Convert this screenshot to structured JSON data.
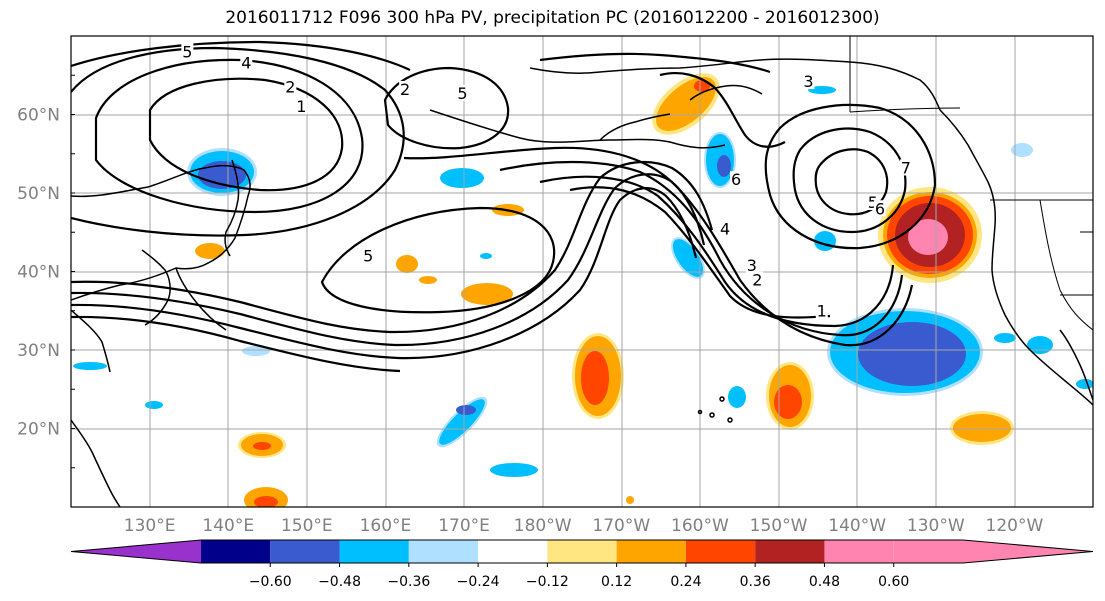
{
  "title": "2016011712 F096 300 hPa PV, precipitation PC (2016012200 - 2016012300)",
  "map": {
    "lat_labels": [
      "60°N",
      "50°N",
      "40°N",
      "30°N",
      "20°N"
    ],
    "lat_values": [
      60,
      50,
      40,
      30,
      20
    ],
    "lon_labels": [
      "130°E",
      "140°E",
      "150°E",
      "160°E",
      "170°E",
      "180°W",
      "170°W",
      "160°W",
      "150°W",
      "140°W",
      "130°W",
      "120°W"
    ],
    "lon_values": [
      130,
      140,
      150,
      160,
      170,
      180,
      190,
      200,
      210,
      220,
      230,
      240
    ],
    "lon_range": [
      120,
      250
    ],
    "lat_range": [
      10,
      70
    ],
    "grid": true,
    "pv_contour_levels": [
      1,
      2,
      3,
      4,
      5,
      6,
      7
    ],
    "pv_contour_labels": [
      {
        "text": "5",
        "lon": 134.8,
        "lat": 67.8
      },
      {
        "text": "4",
        "lon": 142.3,
        "lat": 66.4
      },
      {
        "text": "2",
        "lon": 147.9,
        "lat": 63.3
      },
      {
        "text": "1",
        "lon": 149.3,
        "lat": 60.8
      },
      {
        "text": "2",
        "lon": 162.5,
        "lat": 63.0
      },
      {
        "text": "5",
        "lon": 169.8,
        "lat": 62.5
      },
      {
        "text": "3",
        "lon": 213.8,
        "lat": 64.0
      },
      {
        "text": "5",
        "lon": 157.8,
        "lat": 41.8
      },
      {
        "text": "6",
        "lon": 204.6,
        "lat": 51.5
      },
      {
        "text": "4",
        "lon": 203.2,
        "lat": 45.2
      },
      {
        "text": "3",
        "lon": 206.6,
        "lat": 40.6
      },
      {
        "text": "2",
        "lon": 207.3,
        "lat": 38.7
      },
      {
        "text": "1",
        "lon": 215.5,
        "lat": 34.8
      },
      {
        "text": "5",
        "lon": 222.0,
        "lat": 48.6
      },
      {
        "text": "6",
        "lon": 222.9,
        "lat": 47.8
      },
      {
        "text": "7",
        "lon": 226.2,
        "lat": 53.0
      }
    ],
    "precip_colors": {
      "neg_060": "#9932cc",
      "neg_048": "#00008b",
      "neg_036": "#3a5bcf",
      "neg_024": "#00bfff",
      "neg_012": "#b0e0ff",
      "pos_012": "#ffe680",
      "pos_024": "#ffa500",
      "pos_036": "#ff4500",
      "pos_048": "#b22222",
      "pos_060": "#ff85b0"
    }
  },
  "colorbar": {
    "tick_labels": [
      "−0.60",
      "−0.48",
      "−0.36",
      "−0.24",
      "−0.12",
      "0.12",
      "0.24",
      "0.36",
      "0.48",
      "0.60"
    ],
    "tick_values": [
      -0.6,
      -0.48,
      -0.36,
      -0.24,
      -0.12,
      0.12,
      0.24,
      0.36,
      0.48,
      0.6
    ],
    "segment_colors": [
      "#9932cc",
      "#00008b",
      "#3a5bcf",
      "#00bfff",
      "#b0e0ff",
      "#ffffff",
      "#ffe680",
      "#ffa500",
      "#ff4500",
      "#b22222",
      "#ff85b0"
    ],
    "extend": "both"
  }
}
